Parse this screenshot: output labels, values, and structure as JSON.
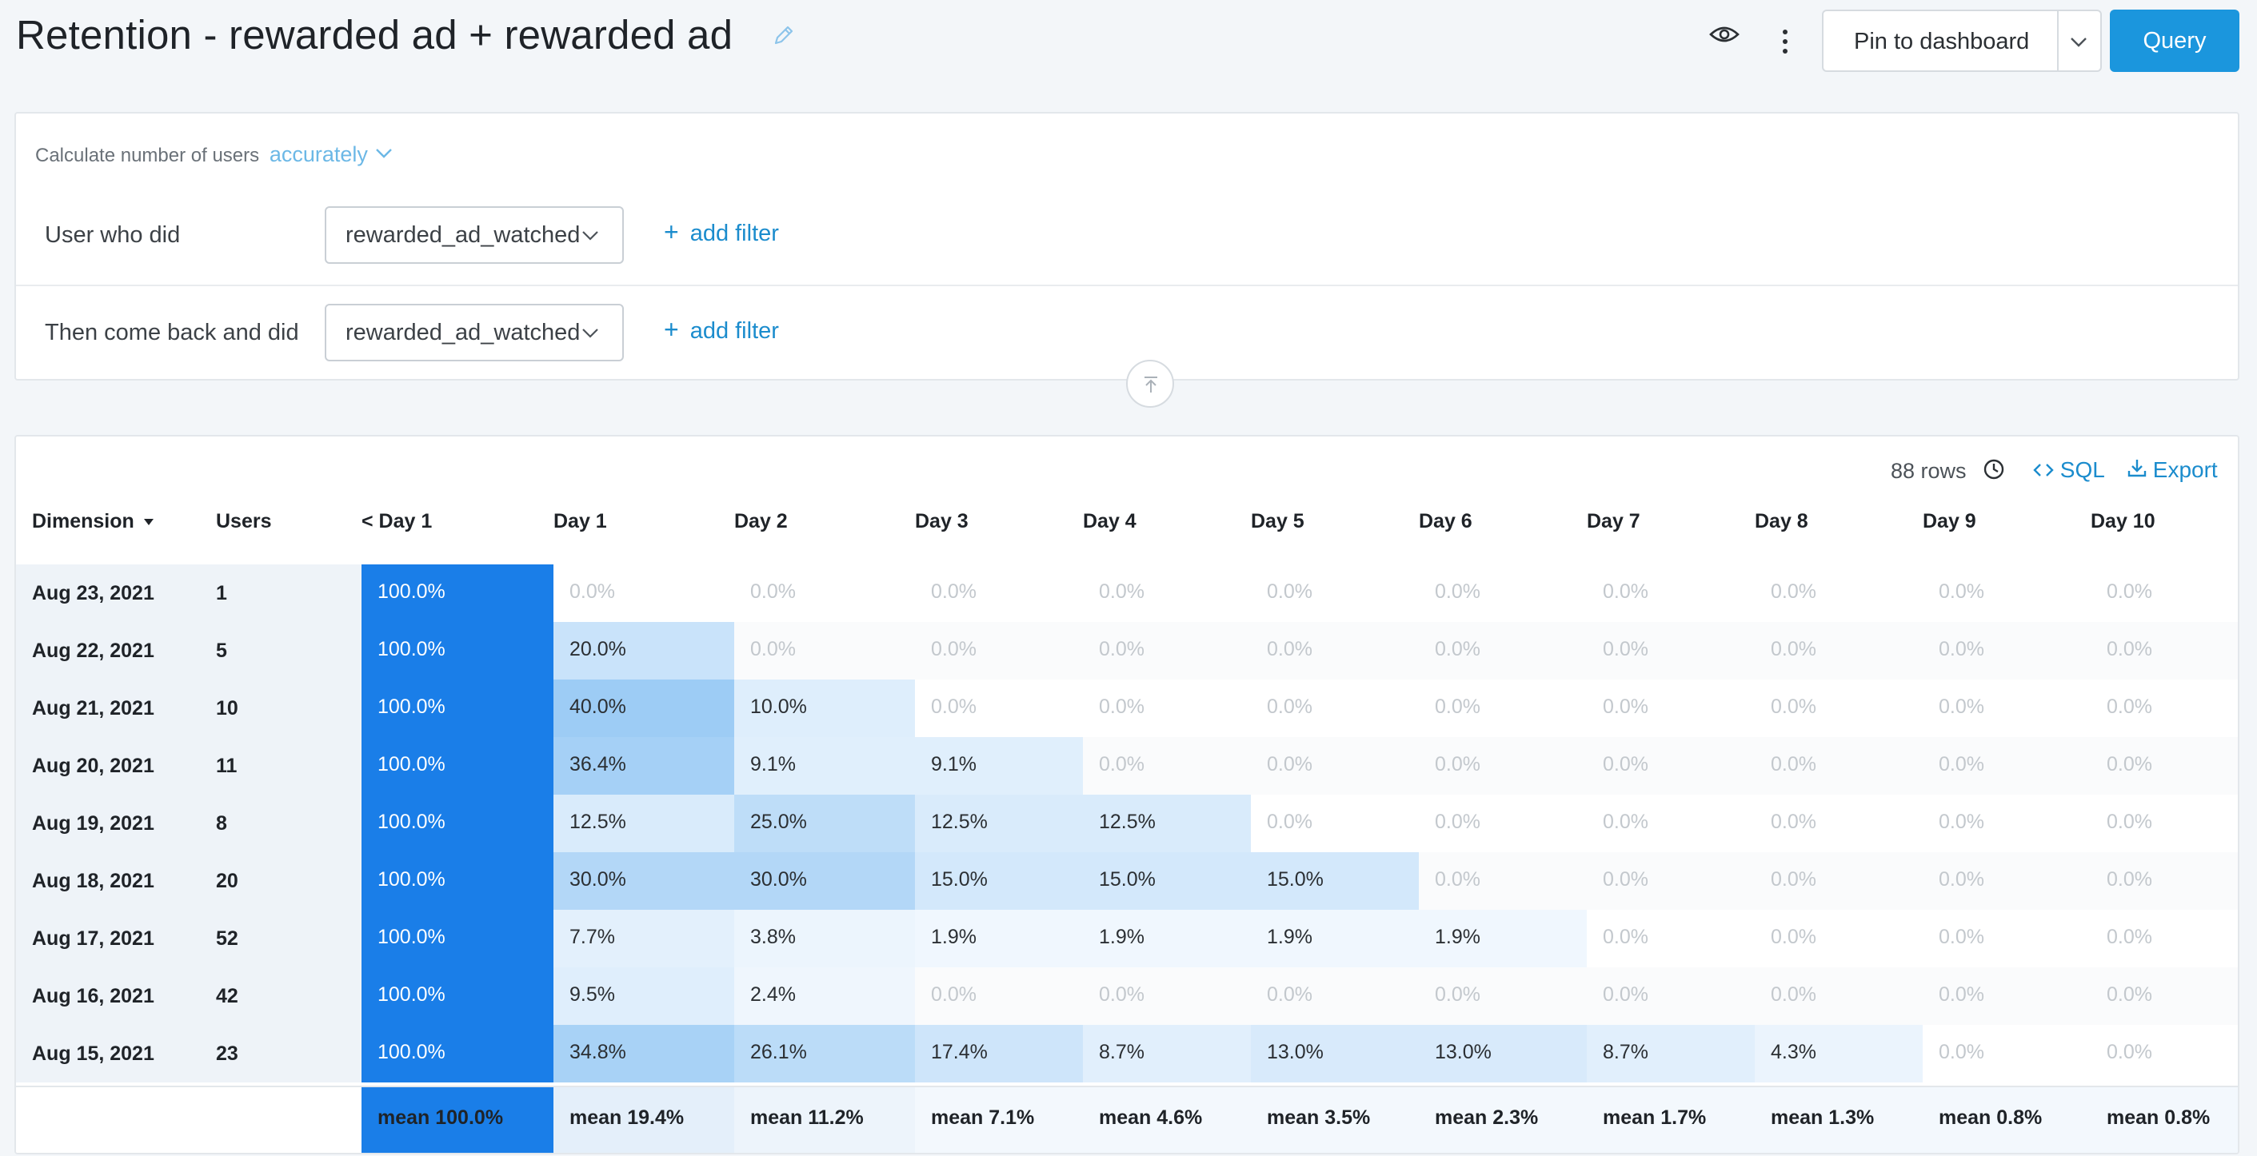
{
  "header": {
    "title": "Retention - rewarded ad + rewarded ad",
    "pin_label": "Pin to dashboard",
    "query_label": "Query"
  },
  "query_panel": {
    "calc_prefix": "Calculate number of users",
    "calc_mode": "accurately",
    "rows": [
      {
        "label": "User who did",
        "event": "rewarded_ad_watched",
        "add_filter": "add filter"
      },
      {
        "label": "Then come back and did",
        "event": "rewarded_ad_watched",
        "add_filter": "add filter"
      }
    ]
  },
  "results": {
    "rows_count": "88 rows",
    "sql_label": "SQL",
    "export_label": "Export",
    "columns": [
      "Dimension",
      "Users",
      "< Day 1",
      "Day 1",
      "Day 2",
      "Day 3",
      "Day 4",
      "Day 5",
      "Day 6",
      "Day 7",
      "Day 8",
      "Day 9",
      "Day 10"
    ],
    "rows": [
      {
        "date": "Aug 23, 2021",
        "users": "1",
        "values": [
          "100.0%",
          "0.0%",
          "0.0%",
          "0.0%",
          "0.0%",
          "0.0%",
          "0.0%",
          "0.0%",
          "0.0%",
          "0.0%",
          "0.0%"
        ]
      },
      {
        "date": "Aug 22, 2021",
        "users": "5",
        "values": [
          "100.0%",
          "20.0%",
          "0.0%",
          "0.0%",
          "0.0%",
          "0.0%",
          "0.0%",
          "0.0%",
          "0.0%",
          "0.0%",
          "0.0%"
        ]
      },
      {
        "date": "Aug 21, 2021",
        "users": "10",
        "values": [
          "100.0%",
          "40.0%",
          "10.0%",
          "0.0%",
          "0.0%",
          "0.0%",
          "0.0%",
          "0.0%",
          "0.0%",
          "0.0%",
          "0.0%"
        ]
      },
      {
        "date": "Aug 20, 2021",
        "users": "11",
        "values": [
          "100.0%",
          "36.4%",
          "9.1%",
          "9.1%",
          "0.0%",
          "0.0%",
          "0.0%",
          "0.0%",
          "0.0%",
          "0.0%",
          "0.0%"
        ]
      },
      {
        "date": "Aug 19, 2021",
        "users": "8",
        "values": [
          "100.0%",
          "12.5%",
          "25.0%",
          "12.5%",
          "12.5%",
          "0.0%",
          "0.0%",
          "0.0%",
          "0.0%",
          "0.0%",
          "0.0%"
        ]
      },
      {
        "date": "Aug 18, 2021",
        "users": "20",
        "values": [
          "100.0%",
          "30.0%",
          "30.0%",
          "15.0%",
          "15.0%",
          "15.0%",
          "0.0%",
          "0.0%",
          "0.0%",
          "0.0%",
          "0.0%"
        ]
      },
      {
        "date": "Aug 17, 2021",
        "users": "52",
        "values": [
          "100.0%",
          "7.7%",
          "3.8%",
          "1.9%",
          "1.9%",
          "1.9%",
          "1.9%",
          "0.0%",
          "0.0%",
          "0.0%",
          "0.0%"
        ]
      },
      {
        "date": "Aug 16, 2021",
        "users": "42",
        "values": [
          "100.0%",
          "9.5%",
          "2.4%",
          "0.0%",
          "0.0%",
          "0.0%",
          "0.0%",
          "0.0%",
          "0.0%",
          "0.0%",
          "0.0%"
        ]
      },
      {
        "date": "Aug 15, 2021",
        "users": "23",
        "values": [
          "100.0%",
          "34.8%",
          "26.1%",
          "17.4%",
          "8.7%",
          "13.0%",
          "13.0%",
          "8.7%",
          "4.3%",
          "0.0%",
          "0.0%"
        ]
      }
    ],
    "means": [
      "mean 100.0%",
      "mean 19.4%",
      "mean 11.2%",
      "mean 7.1%",
      "mean 4.6%",
      "mean 3.5%",
      "mean 2.3%",
      "mean 1.7%",
      "mean 1.3%",
      "mean 0.8%",
      "mean 0.8%"
    ]
  },
  "colors": {
    "accent": "#1b96dd",
    "heat_full": "#1a7ee8",
    "link": "#1b8ccd"
  },
  "icons": [
    "edit-icon",
    "eye-icon",
    "kebab-icon",
    "chevron-down-icon",
    "collapse-up-icon",
    "clock-icon",
    "code-icon",
    "download-icon",
    "sort-caret-icon"
  ]
}
